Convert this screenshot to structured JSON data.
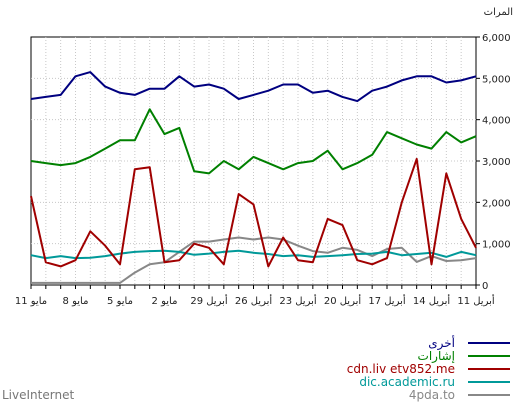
{
  "chart_data": {
    "type": "line",
    "ylabel": "المرات",
    "ylim": [
      0,
      6000
    ],
    "yticks": [
      "0",
      "1,000",
      "2,000",
      "3,000",
      "4,000",
      "5,000",
      "6,000"
    ],
    "ytick_values": [
      0,
      1000,
      2000,
      3000,
      4000,
      5000,
      6000
    ],
    "x_count": 31,
    "xticks_row1": [
      {
        "label": "11 أبريل",
        "index": 0
      },
      {
        "label": "14 أبريل",
        "index": 3
      },
      {
        "label": "17 أبريل",
        "index": 6
      },
      {
        "label": "20 أبريل",
        "index": 9
      },
      {
        "label": "23 أبريل",
        "index": 12
      },
      {
        "label": "26 أبريل",
        "index": 15
      },
      {
        "label": "29 أبريل",
        "index": 18
      },
      {
        "label": "2 مايو",
        "index": 21
      },
      {
        "label": "5 مايو",
        "index": 24
      },
      {
        "label": "8 مايو",
        "index": 27
      },
      {
        "label": "11 مايو",
        "index": 30
      }
    ],
    "grid": true,
    "legend_position": "bottom-right",
    "series": [
      {
        "name": "أخرى",
        "color": "#000080",
        "values": [
          5050,
          4950,
          4900,
          5050,
          5050,
          4950,
          4800,
          4700,
          4450,
          4550,
          4700,
          4650,
          4850,
          4850,
          4700,
          4600,
          4500,
          4750,
          4850,
          4800,
          5050,
          4750,
          4750,
          4600,
          4650,
          4800,
          5150,
          5050,
          4600,
          4550,
          4500
        ]
      },
      {
        "name": "إشارات",
        "color": "#008000",
        "values": [
          3600,
          3450,
          3700,
          3300,
          3400,
          3550,
          3700,
          3150,
          2950,
          2800,
          3250,
          3000,
          2950,
          2800,
          2950,
          3100,
          2800,
          3000,
          2700,
          2750,
          3800,
          3650,
          4250,
          3500,
          3500,
          3300,
          3100,
          2950,
          2900,
          2950,
          3000
        ]
      },
      {
        "name": "cdn.liv etv852.me",
        "color": "#a00000",
        "values": [
          900,
          1600,
          2700,
          500,
          3050,
          2000,
          650,
          500,
          600,
          1450,
          1600,
          550,
          600,
          1150,
          450,
          1950,
          2200,
          500,
          900,
          1000,
          600,
          550,
          2850,
          2800,
          500,
          950,
          1300,
          600,
          450,
          550,
          2150
        ]
      },
      {
        "name": "dic.academic.ru",
        "color": "#009999",
        "values": [
          720,
          800,
          680,
          780,
          750,
          720,
          800,
          760,
          750,
          720,
          700,
          680,
          720,
          700,
          750,
          780,
          830,
          800,
          760,
          730,
          800,
          830,
          820,
          800,
          760,
          700,
          660,
          650,
          700,
          650,
          720
        ]
      },
      {
        "name": "4pda.to",
        "color": "#888888",
        "values": [
          650,
          600,
          580,
          700,
          560,
          900,
          870,
          700,
          850,
          900,
          780,
          820,
          950,
          1100,
          1150,
          1100,
          1150,
          1100,
          1050,
          1050,
          800,
          550,
          500,
          300,
          50,
          50,
          50,
          50,
          50,
          50,
          50
        ]
      }
    ]
  },
  "brand": "LiveInternet"
}
